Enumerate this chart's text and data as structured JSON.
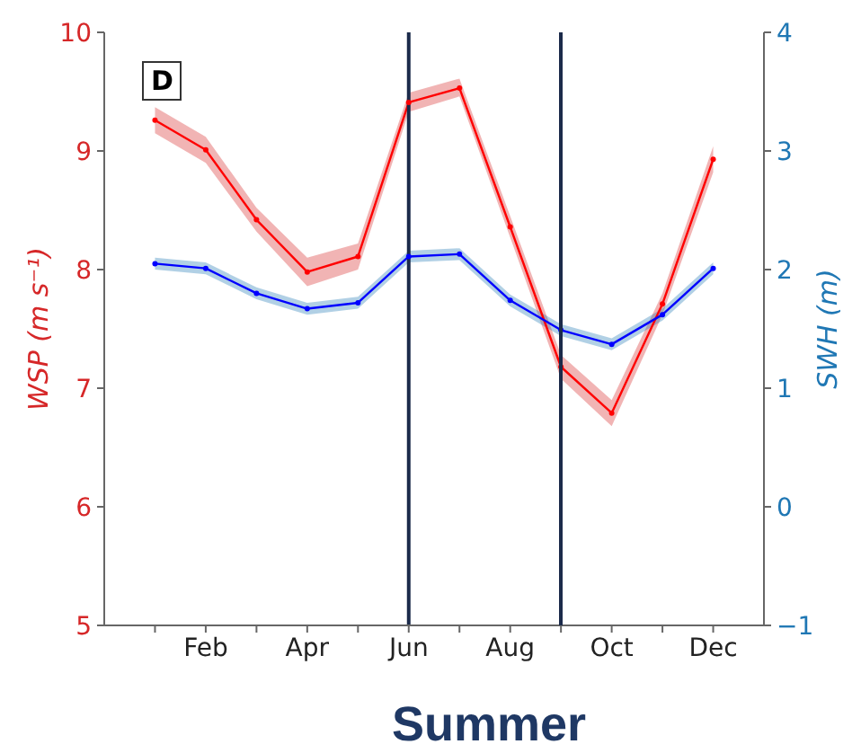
{
  "chart_data": {
    "type": "line",
    "title": "Summer",
    "ylabel": "WSP (m s⁻¹)",
    "y2label": "SWH (m)",
    "annotations": [
      "D"
    ],
    "categories": [
      null,
      "Feb",
      null,
      "Apr",
      null,
      "Jun",
      null,
      "Aug",
      null,
      "Oct",
      null,
      "Dec"
    ],
    "ylim": [
      5,
      10
    ],
    "yticks": [
      5,
      6,
      7,
      8,
      9,
      10
    ],
    "y2lim": [
      -1,
      4
    ],
    "y2ticks": [
      {
        "value": -1,
        "label": "−1"
      },
      0,
      1,
      2,
      3,
      4
    ],
    "series": [
      {
        "color": "#ff0000",
        "values": [
          9.26,
          9.01,
          8.42,
          7.98,
          8.11,
          9.41,
          9.53,
          8.36,
          7.18,
          6.79,
          7.71,
          8.93
        ],
        "lower": [
          9.15,
          8.9,
          8.32,
          7.86,
          8.0,
          9.33,
          9.46,
          8.27,
          7.08,
          6.68,
          7.62,
          8.82
        ],
        "upper": [
          9.37,
          9.12,
          8.52,
          8.1,
          8.22,
          9.49,
          9.61,
          8.45,
          7.28,
          6.9,
          7.8,
          9.04
        ]
      },
      {
        "color": "#0000ff",
        "axis": "y2",
        "values": [
          2.05,
          2.01,
          1.8,
          1.67,
          1.72,
          2.11,
          2.13,
          1.74,
          1.49,
          1.37,
          1.62,
          2.01
        ],
        "lower": [
          2.0,
          1.96,
          1.75,
          1.62,
          1.67,
          2.06,
          2.08,
          1.69,
          1.44,
          1.32,
          1.57,
          1.96
        ],
        "upper": [
          2.1,
          2.06,
          1.85,
          1.72,
          1.77,
          2.16,
          2.18,
          1.79,
          1.54,
          1.42,
          1.67,
          2.06
        ]
      }
    ],
    "ref_lines": [
      {
        "axis": "x",
        "value": "Jun",
        "color": "#1b2a4a"
      }
    ],
    "marker": "circle"
  }
}
